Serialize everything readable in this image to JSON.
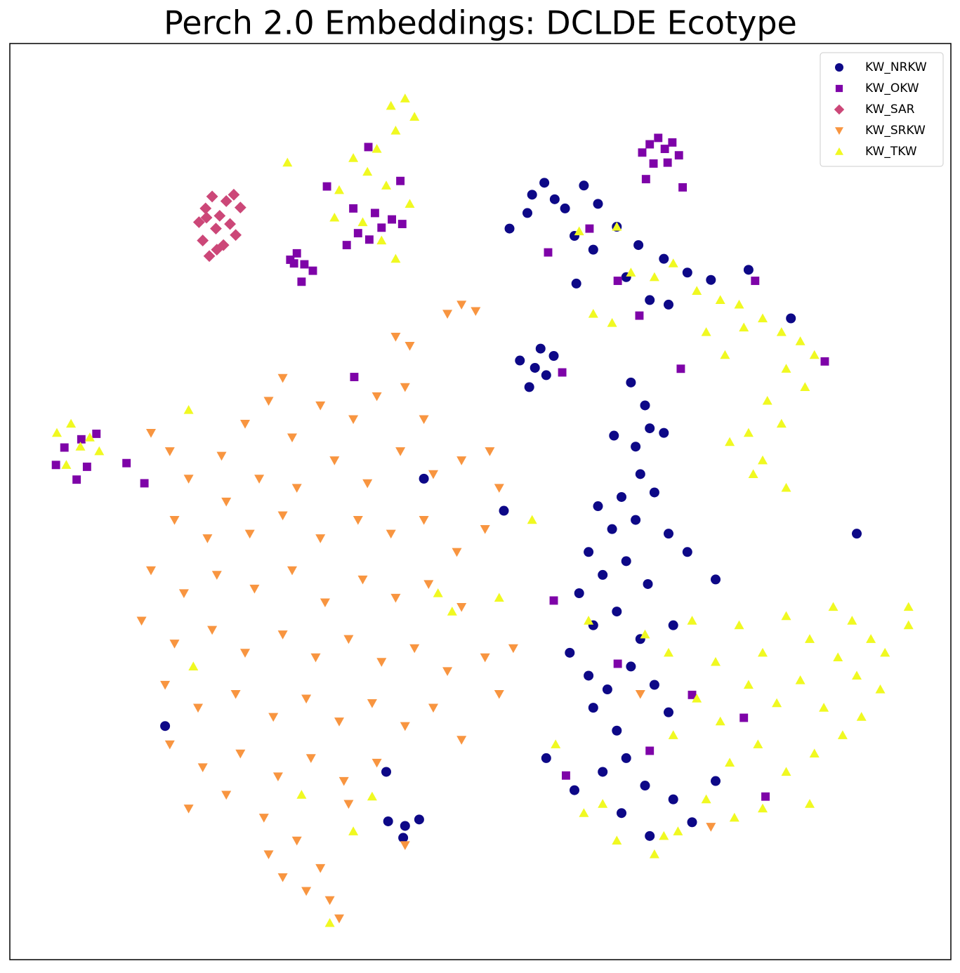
{
  "chart_data": {
    "type": "scatter",
    "title": "Perch 2.0 Embeddings: DCLDE Ecotype",
    "xlim": [
      0,
      100
    ],
    "ylim": [
      0,
      100
    ],
    "legend": "upper right",
    "series": [
      {
        "name": "KW_NRKW",
        "color": "#0d0887",
        "marker": "circle",
        "x": [
          55.5,
          56.8,
          57.9,
          59.0,
          61.0,
          62.5,
          53.1,
          55.0,
          60.0,
          62.0,
          64.5,
          66.8,
          69.5,
          72.0,
          74.5,
          78.5,
          60.2,
          65.5,
          68.0,
          70.0,
          83.0,
          54.2,
          55.8,
          57.0,
          55.2,
          57.8,
          56.4,
          66.0,
          67.5,
          68.0,
          66.5,
          69.5,
          64.2,
          67.0,
          65.0,
          68.5,
          62.5,
          64.0,
          66.5,
          70.0,
          61.5,
          63.0,
          65.5,
          67.8,
          72.0,
          75.0,
          60.5,
          62.0,
          64.5,
          67.0,
          70.5,
          59.5,
          61.5,
          63.5,
          66.0,
          68.5,
          70.0,
          62.0,
          64.5,
          65.5,
          63.0,
          60.0,
          67.5,
          70.5,
          65.0,
          68.0,
          72.5,
          75.0,
          57.0,
          52.5,
          44.0,
          90.0,
          16.5,
          40.0,
          42.0,
          43.5,
          41.8,
          40.2
        ],
        "values": [
          83.5,
          84.8,
          83.0,
          82.0,
          84.5,
          82.5,
          79.8,
          81.5,
          79.0,
          77.5,
          80.0,
          78.0,
          76.5,
          75.0,
          74.2,
          75.3,
          73.8,
          74.5,
          72.0,
          71.5,
          70.0,
          65.4,
          64.6,
          63.8,
          62.5,
          65.9,
          66.7,
          63.0,
          60.5,
          58.0,
          56.0,
          57.5,
          57.2,
          53.0,
          50.5,
          51.0,
          49.5,
          47.0,
          48.0,
          46.5,
          44.5,
          42.0,
          43.5,
          41.0,
          44.5,
          41.5,
          40.0,
          36.5,
          38.0,
          35.0,
          36.5,
          33.5,
          31.0,
          29.5,
          32.0,
          30.0,
          27.0,
          27.5,
          25.0,
          22.0,
          20.5,
          18.5,
          19.0,
          17.5,
          16.0,
          13.5,
          15.0,
          19.5,
          22.0,
          49.0,
          52.5,
          46.5,
          25.5,
          20.5,
          14.6,
          15.3,
          13.3,
          15.1
        ]
      },
      {
        "name": "KW_OKW",
        "color": "#7e03a8",
        "marker": "square",
        "x": [
          67.2,
          68.0,
          68.9,
          69.6,
          70.4,
          71.1,
          68.4,
          69.9,
          67.6,
          71.5,
          29.8,
          30.5,
          31.3,
          32.2,
          31.0,
          30.2,
          35.8,
          37.0,
          38.2,
          39.5,
          40.6,
          41.7,
          38.8,
          36.5,
          38.1,
          33.7,
          41.5,
          4.9,
          5.8,
          7.1,
          8.2,
          9.2,
          7.6,
          12.4,
          14.3,
          57.2,
          61.6,
          64.6,
          66.9,
          71.3,
          79.2,
          86.6,
          58.7,
          57.8,
          64.6,
          72.5,
          78.0,
          68.0,
          59.1,
          36.6,
          80.3
        ],
        "values": [
          88.1,
          89.0,
          89.7,
          88.5,
          89.2,
          87.8,
          86.9,
          87.0,
          85.2,
          84.3,
          76.4,
          77.1,
          75.9,
          75.2,
          74.0,
          76.0,
          78.0,
          79.3,
          78.6,
          79.9,
          80.8,
          80.3,
          81.5,
          82.0,
          88.7,
          84.4,
          85.0,
          54.0,
          55.9,
          52.4,
          53.8,
          57.4,
          56.8,
          54.2,
          52.0,
          77.2,
          79.8,
          74.1,
          70.3,
          64.5,
          74.1,
          65.3,
          64.1,
          39.2,
          32.3,
          28.9,
          26.4,
          22.8,
          20.1,
          63.6,
          17.8
        ]
      },
      {
        "name": "KW_SAR",
        "color": "#cc4778",
        "marker": "diamond",
        "x": [
          20.1,
          20.8,
          21.5,
          22.3,
          23.0,
          23.8,
          24.5,
          20.5,
          21.9,
          22.7,
          23.4,
          21.2,
          22.0,
          24.0,
          20.9
        ],
        "values": [
          80.5,
          82.0,
          83.3,
          81.2,
          82.8,
          83.5,
          82.1,
          78.5,
          79.8,
          78.0,
          80.3,
          76.8,
          77.5,
          79.1,
          81.0
        ]
      },
      {
        "name": "KW_SRKW",
        "color": "#f89540",
        "marker": "triangle-down",
        "x": [
          46.5,
          48.0,
          49.5,
          41.0,
          42.5,
          27.5,
          29.0,
          15.0,
          17.0,
          22.5,
          25.0,
          30.0,
          33.0,
          36.5,
          39.0,
          42.0,
          44.0,
          19.0,
          23.0,
          26.5,
          30.5,
          34.5,
          38.0,
          41.5,
          45.0,
          48.0,
          51.0,
          52.0,
          17.5,
          21.0,
          25.5,
          29.0,
          33.0,
          37.0,
          40.5,
          44.0,
          47.5,
          50.5,
          15.0,
          18.5,
          22.0,
          26.0,
          30.0,
          33.5,
          37.5,
          41.0,
          44.5,
          48.0,
          14.0,
          17.5,
          21.5,
          25.0,
          29.0,
          32.5,
          36.0,
          39.5,
          43.0,
          46.5,
          50.5,
          53.5,
          16.5,
          20.0,
          24.0,
          28.0,
          31.5,
          35.0,
          38.5,
          42.0,
          45.0,
          48.0,
          52.0,
          17.0,
          20.5,
          24.5,
          28.5,
          32.0,
          35.5,
          39.0,
          19.0,
          23.0,
          27.0,
          30.5,
          33.0,
          29.0,
          31.5,
          34.0,
          35.0,
          27.5,
          36.0,
          42.0,
          74.5,
          67.0
        ],
        "values": [
          70.5,
          71.5,
          70.8,
          68.0,
          67.0,
          61.0,
          63.5,
          57.5,
          55.5,
          55.0,
          58.5,
          57.0,
          60.5,
          59.0,
          61.5,
          62.5,
          59.0,
          52.5,
          50.0,
          52.5,
          51.5,
          54.5,
          52.0,
          55.5,
          53.0,
          54.5,
          55.5,
          51.5,
          48.0,
          46.0,
          46.5,
          48.5,
          46.0,
          48.0,
          46.5,
          48.0,
          44.5,
          47.0,
          42.5,
          40.0,
          42.0,
          40.5,
          42.5,
          39.0,
          41.5,
          39.5,
          41.0,
          38.5,
          37.0,
          34.5,
          36.0,
          33.5,
          35.5,
          33.0,
          35.0,
          32.5,
          34.0,
          31.5,
          33.0,
          34.0,
          30.0,
          27.5,
          29.0,
          26.5,
          28.5,
          26.0,
          28.0,
          25.5,
          27.5,
          24.0,
          29.0,
          23.5,
          21.0,
          22.5,
          20.0,
          22.0,
          19.5,
          21.5,
          16.5,
          18.0,
          15.5,
          13.0,
          10.0,
          9.0,
          7.5,
          6.5,
          4.5,
          11.5,
          17.0,
          12.5,
          14.5,
          29.0
        ]
      },
      {
        "name": "KW_TKW",
        "color": "#f0f921",
        "marker": "triangle-up",
        "x": [
          40.5,
          42.0,
          43.0,
          41.0,
          39.0,
          36.5,
          38.0,
          40.0,
          42.5,
          35.0,
          37.5,
          39.5,
          41.0,
          34.5,
          29.5,
          60.5,
          64.5,
          66.0,
          68.5,
          70.5,
          73.0,
          75.5,
          77.5,
          80.0,
          82.0,
          84.0,
          85.5,
          78.0,
          74.0,
          76.0,
          82.5,
          84.5,
          80.5,
          82.0,
          78.5,
          76.5,
          80.0,
          82.5,
          79.0,
          62.0,
          64.0,
          67.5,
          70.0,
          72.5,
          75.0,
          77.5,
          80.0,
          82.5,
          85.0,
          87.5,
          89.5,
          91.5,
          93.0,
          95.5,
          90.0,
          92.5,
          88.0,
          84.0,
          86.5,
          81.5,
          78.5,
          75.5,
          73.0,
          70.5,
          76.5,
          79.5,
          82.5,
          85.5,
          88.5,
          90.5,
          85.0,
          80.0,
          77.0,
          74.0,
          71.0,
          68.5,
          69.5,
          63.0,
          61.0,
          64.5,
          95.5,
          5.0,
          6.5,
          7.5,
          9.5,
          6.0,
          8.5,
          19.0,
          45.5,
          47.0,
          52.0,
          19.5,
          38.5,
          36.5,
          34.0,
          31.0,
          58.0,
          61.5,
          55.5
        ],
        "values": [
          93.2,
          94.0,
          92.0,
          90.5,
          88.5,
          87.5,
          86.0,
          84.5,
          82.5,
          84.0,
          80.5,
          78.5,
          76.5,
          81.0,
          87.0,
          79.5,
          80.0,
          75.0,
          74.5,
          76.0,
          73.0,
          72.0,
          71.5,
          70.0,
          68.5,
          67.5,
          66.0,
          69.0,
          68.5,
          66.0,
          64.5,
          62.5,
          61.0,
          58.5,
          57.5,
          56.5,
          54.5,
          51.5,
          53.0,
          70.5,
          69.5,
          35.5,
          33.5,
          37.0,
          32.5,
          36.5,
          33.5,
          37.5,
          35.0,
          38.5,
          37.0,
          35.0,
          33.5,
          36.5,
          31.0,
          29.5,
          33.0,
          30.5,
          27.5,
          28.0,
          30.0,
          26.0,
          28.5,
          24.5,
          21.5,
          23.5,
          20.5,
          22.5,
          24.5,
          26.5,
          17.0,
          16.5,
          15.5,
          17.5,
          14.0,
          11.5,
          13.5,
          17.0,
          16.0,
          13.0,
          38.5,
          57.5,
          58.5,
          56.0,
          55.5,
          54.0,
          57.0,
          60.0,
          40.0,
          38.0,
          39.5,
          32.0,
          17.8,
          14.0,
          4.0,
          18.0,
          23.5,
          37.0,
          48.0
        ]
      }
    ]
  }
}
